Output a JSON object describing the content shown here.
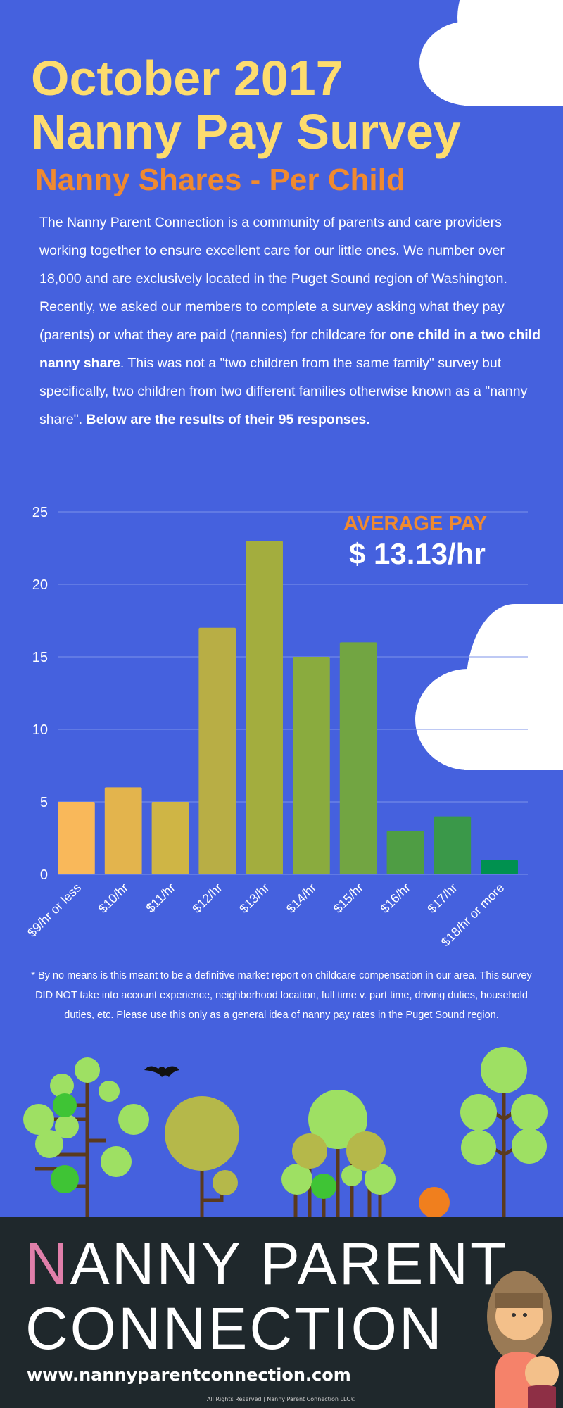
{
  "header": {
    "title_line1": "October 2017",
    "title_line2": "Nanny Pay Survey",
    "subtitle": "Nanny Shares - Per Child"
  },
  "intro": {
    "p1": "The Nanny Parent Connection is a community of parents and care providers working together to ensure excellent care for our little ones. We number over 18,000 and are exclusively located in the Puget Sound region of Washington.",
    "p2a": "Recently, we asked our members to complete a survey asking what they pay (parents) or what they are paid (nannies) for childcare for ",
    "p2b": "one child in a two child nanny share",
    "p2c": ". This was not a \"two children from the same family\" survey but specifically, two children from two different families otherwise known as a \"nanny share\". ",
    "p2d": "Below are the results of their 95 responses."
  },
  "average": {
    "label": "AVERAGE PAY",
    "value": "$ 13.13/hr"
  },
  "chart_data": {
    "type": "bar",
    "title": "",
    "xlabel": "",
    "ylabel": "",
    "categories": [
      "$9/hr or less",
      "$10/hr",
      "$11/hr",
      "$12/hr",
      "$13/hr",
      "$14/hr",
      "$15/hr",
      "$16/hr",
      "$17/hr",
      "$18/hr or more"
    ],
    "values": [
      5,
      6,
      5,
      17,
      23,
      15,
      16,
      3,
      4,
      1
    ],
    "colors": [
      "#f9b85a",
      "#e3b44d",
      "#cfb545",
      "#b8ae45",
      "#a3ad3e",
      "#8aab3e",
      "#72a542",
      "#4f9d44",
      "#3a9849",
      "#00914f"
    ],
    "ylim": [
      0,
      25
    ],
    "yticks": [
      0,
      5,
      10,
      15,
      20,
      25
    ],
    "grid": true
  },
  "disclaimer": "* By no means is this meant to be a definitive market report on childcare compensation in our area. This survey DID NOT take into account experience, neighborhood location, full time v. part time, driving duties, household duties, etc. Please use this only as a general idea of nanny pay rates in the Puget Sound region.",
  "footer": {
    "brand_first": "N",
    "brand_rest": "ANNY PARENT",
    "brand_line2": "CONNECTION",
    "url": "www.nannyparentconnection.com",
    "rights": "All Rights Reserved | Nanny Parent Connection LLC©"
  }
}
